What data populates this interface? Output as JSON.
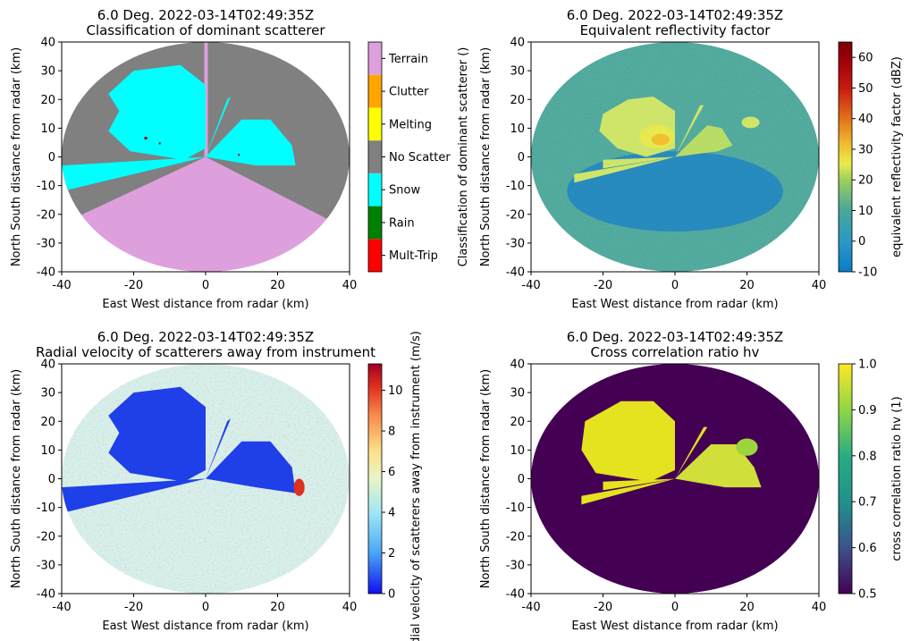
{
  "chart_data": [
    {
      "type": "heatmap",
      "title": "6.0 Deg. 2022-03-14T02:49:35Z",
      "subtitle": "Classification of dominant scatterer",
      "xlabel": "East West distance from radar (km)",
      "ylabel": "North South distance from radar (km)",
      "xlim": [
        -40,
        40
      ],
      "ylim": [
        -40,
        40
      ],
      "xticks": [
        -40,
        -20,
        0,
        20,
        40
      ],
      "yticks": [
        -40,
        -30,
        -20,
        -10,
        0,
        10,
        20,
        30,
        40
      ],
      "colorbar": {
        "kind": "categorical",
        "label": "Classification of dominant scatterer ()",
        "categories": [
          "Mult-Trip",
          "Rain",
          "Snow",
          "No Scatter",
          "Melting",
          "Clutter",
          "Terrain"
        ],
        "colors": [
          "#ff0000",
          "#008000",
          "#00ffff",
          "#808080",
          "#ffff00",
          "#ffa500",
          "#dda0dd"
        ]
      },
      "radar_range_km": 40,
      "colormap": "categorical"
    },
    {
      "type": "heatmap",
      "title": "6.0 Deg. 2022-03-14T02:49:35Z",
      "subtitle": "Equivalent reflectivity factor",
      "xlabel": "East West distance from radar (km)",
      "ylabel": "North South distance from radar (km)",
      "xlim": [
        -40,
        40
      ],
      "ylim": [
        -40,
        40
      ],
      "xticks": [
        -40,
        -20,
        0,
        20,
        40
      ],
      "yticks": [
        -40,
        -30,
        -20,
        -10,
        0,
        10,
        20,
        30,
        40
      ],
      "colorbar": {
        "kind": "continuous",
        "label": "equivalent reflectivity factor (dBZ)",
        "range": [
          -10,
          65
        ],
        "ticks": [
          -10,
          0,
          10,
          20,
          30,
          40,
          50,
          60
        ]
      },
      "radar_range_km": 40,
      "colormap": "homeyer"
    },
    {
      "type": "heatmap",
      "title": "6.0 Deg. 2022-03-14T02:49:35Z",
      "subtitle": "Radial velocity of scatterers away from instrument",
      "xlabel": "East West distance from radar (km)",
      "ylabel": "North South distance from radar (km)",
      "xlim": [
        -40,
        40
      ],
      "ylim": [
        -40,
        40
      ],
      "xticks": [
        -40,
        -20,
        0,
        20,
        40
      ],
      "yticks": [
        -40,
        -30,
        -20,
        -10,
        0,
        10,
        20,
        30,
        40
      ],
      "colorbar": {
        "kind": "continuous",
        "label": "dial velocity of scatterers away from instrument (m/s)",
        "range": [
          0,
          11.3
        ],
        "ticks": [
          0,
          2,
          4,
          6,
          8,
          10
        ]
      },
      "radar_range_km": 40,
      "colormap": "rdylbu_r"
    },
    {
      "type": "heatmap",
      "title": "6.0 Deg. 2022-03-14T02:49:35Z",
      "subtitle": "Cross correlation ratio hv",
      "xlabel": "East West distance from radar (km)",
      "ylabel": "North South distance from radar (km)",
      "xlim": [
        -40,
        40
      ],
      "ylim": [
        -40,
        40
      ],
      "xticks": [
        -40,
        -20,
        0,
        20,
        40
      ],
      "yticks": [
        -40,
        -30,
        -20,
        -10,
        0,
        10,
        20,
        30,
        40
      ],
      "colorbar": {
        "kind": "continuous",
        "label": "cross correlation ratio hv (1)",
        "range": [
          0.5,
          1.0
        ],
        "ticks": [
          0.5,
          0.6,
          0.7,
          0.8,
          0.9,
          1.0
        ]
      },
      "radar_range_km": 40,
      "colormap": "viridis"
    }
  ]
}
